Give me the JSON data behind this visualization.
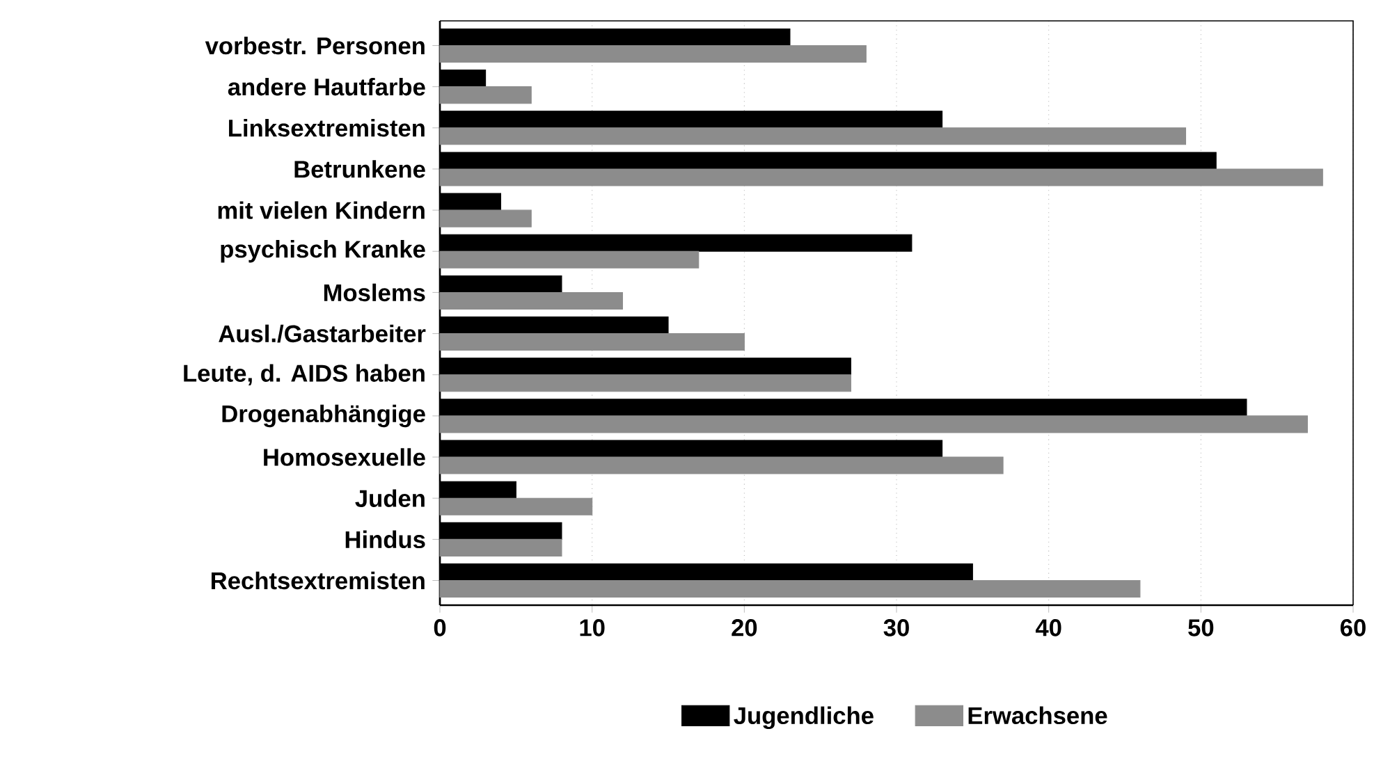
{
  "chart_data": {
    "type": "bar",
    "orientation": "horizontal",
    "categories": [
      "vorbestr. Personen",
      "andere Hautfarbe",
      "Linksextremisten",
      "Betrunkene",
      "mit vielen Kindern",
      "psychisch Kranke",
      "Moslems",
      "Ausl./Gastarbeiter",
      "Leute, d. AIDS haben",
      "Drogenabhängige",
      "Homosexuelle",
      "Juden",
      "Hindus",
      "Rechtsextremisten"
    ],
    "series": [
      {
        "name": "Jugendliche",
        "color": "#000000",
        "values": [
          23,
          3,
          33,
          51,
          4,
          31,
          8,
          15,
          27,
          53,
          33,
          5,
          8,
          35
        ]
      },
      {
        "name": "Erwachsene",
        "color": "#8c8c8c",
        "values": [
          28,
          6,
          49,
          58,
          6,
          17,
          12,
          20,
          27,
          57,
          37,
          10,
          8,
          46
        ]
      }
    ],
    "xlim": [
      0,
      60
    ],
    "xticks": [
      0,
      10,
      20,
      30,
      40,
      50,
      60
    ],
    "grid": "x",
    "legend": "bottom"
  }
}
